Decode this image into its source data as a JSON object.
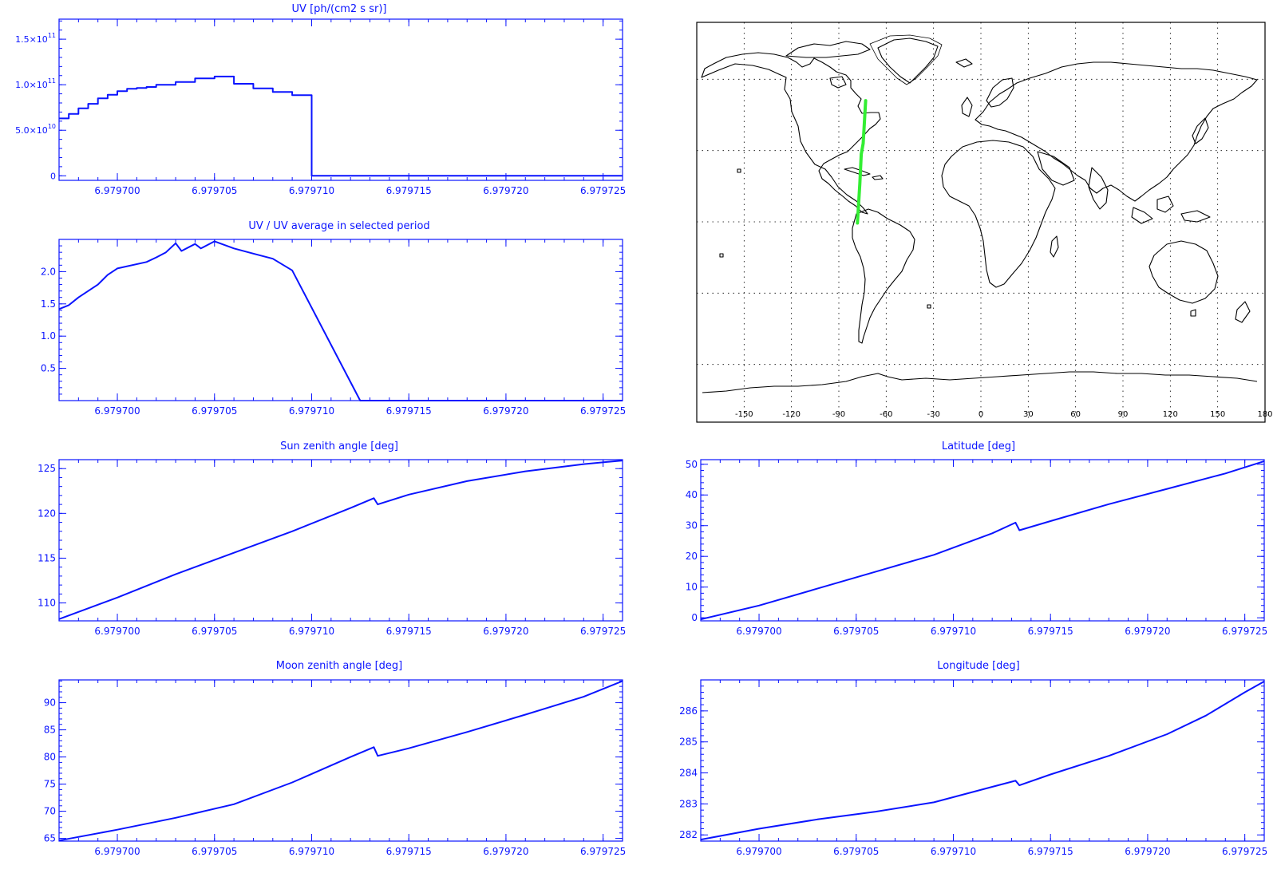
{
  "colors": {
    "axes": "#0a14ff",
    "line": "#0a14ff",
    "track": "#33ee33",
    "coast": "#000000",
    "background": "#ffffff"
  },
  "chart_data": [
    {
      "id": "uv",
      "type": "line",
      "title": "UV [ph/(cm2 s sr)]",
      "xlabel": "",
      "ylabel": "",
      "xlim": [
        6.979697,
        6.979726
      ],
      "ylim": [
        -5000000000.0,
        172000000000.0
      ],
      "xticks": [
        6.9797,
        6.979705,
        6.97971,
        6.979715,
        6.97972,
        6.979725
      ],
      "xtick_labels": [
        "6.979700",
        "6.979705",
        "6.979710",
        "6.979715",
        "6.979720",
        "6.979725"
      ],
      "yticks": [
        0,
        50000000000.0,
        100000000000.0,
        150000000000.0
      ],
      "ytick_labels": [
        {
          "main": "0",
          "exp": ""
        },
        {
          "main": "5.0×10",
          "exp": "10"
        },
        {
          "main": "1.0×10",
          "exp": "11"
        },
        {
          "main": "1.5×10",
          "exp": "11"
        }
      ],
      "series": [
        {
          "x": [
            6.979697,
            6.9796975,
            6.979698,
            6.9796985,
            6.979699,
            6.9796995,
            6.9797,
            6.9797005,
            6.979701,
            6.9797015,
            6.979702,
            6.979703,
            6.979704,
            6.979705,
            6.979706,
            6.979707,
            6.979708,
            6.979709,
            6.9797095,
            6.97971,
            6.97971,
            6.9797105,
            6.979726
          ],
          "y": [
            63000000000.0,
            68000000000.0,
            74000000000.0,
            79000000000.0,
            85000000000.0,
            89000000000.0,
            93000000000.0,
            95500000000.0,
            96500000000.0,
            97500000000.0,
            100000000000.0,
            103000000000.0,
            107000000000.0,
            109000000000.0,
            101000000000.0,
            96000000000.0,
            92000000000.0,
            88500000000.0,
            88500000000.0,
            88500000000.0,
            0,
            0,
            0
          ],
          "step": true
        }
      ]
    },
    {
      "id": "uv-ratio",
      "type": "line",
      "title": "UV / UV average in selected period",
      "xlabel": "",
      "ylabel": "",
      "xlim": [
        6.979697,
        6.979726
      ],
      "ylim": [
        0,
        2.5
      ],
      "xticks": [
        6.9797,
        6.979705,
        6.97971,
        6.979715,
        6.97972,
        6.979725
      ],
      "xtick_labels": [
        "6.979700",
        "6.979705",
        "6.979710",
        "6.979715",
        "6.979720",
        "6.979725"
      ],
      "yticks": [
        0.5,
        1.0,
        1.5,
        2.0
      ],
      "ytick_labels": [
        "0.5",
        "1.0",
        "1.5",
        "2.0"
      ],
      "series": [
        {
          "x": [
            6.979697,
            6.9796975,
            6.979698,
            6.979699,
            6.9796995,
            6.9797,
            6.9797015,
            6.979702,
            6.9797025,
            6.979703,
            6.9797033,
            6.979704,
            6.9797043,
            6.979705,
            6.979706,
            6.979707,
            6.979708,
            6.979709,
            6.9797125,
            6.979726
          ],
          "y": [
            1.42,
            1.48,
            1.6,
            1.8,
            1.95,
            2.05,
            2.15,
            2.22,
            2.3,
            2.44,
            2.32,
            2.43,
            2.36,
            2.47,
            2.36,
            2.28,
            2.2,
            2.02,
            0.0,
            0.0
          ]
        }
      ]
    },
    {
      "id": "sun-zenith",
      "type": "line",
      "title": "Sun zenith angle [deg]",
      "xlabel": "",
      "ylabel": "",
      "xlim": [
        6.979697,
        6.979726
      ],
      "ylim": [
        108,
        126
      ],
      "xticks": [
        6.9797,
        6.979705,
        6.97971,
        6.979715,
        6.97972,
        6.979725
      ],
      "xtick_labels": [
        "6.979700",
        "6.979705",
        "6.979710",
        "6.979715",
        "6.979720",
        "6.979725"
      ],
      "yticks": [
        110,
        115,
        120,
        125
      ],
      "ytick_labels": [
        "110",
        "115",
        "120",
        "125"
      ],
      "series": [
        {
          "x": [
            6.979697,
            6.9797,
            6.979703,
            6.979706,
            6.979709,
            6.979712,
            6.9797132,
            6.9797134,
            6.979715,
            6.979718,
            6.979721,
            6.979724,
            6.979726
          ],
          "y": [
            108.2,
            110.6,
            113.2,
            115.6,
            118.0,
            120.6,
            121.7,
            121.0,
            122.1,
            123.6,
            124.7,
            125.5,
            125.9
          ]
        }
      ]
    },
    {
      "id": "moon-zenith",
      "type": "line",
      "title": "Moon zenith angle [deg]",
      "xlabel": "",
      "ylabel": "",
      "xlim": [
        6.979697,
        6.979726
      ],
      "ylim": [
        64.5,
        94.2
      ],
      "xticks": [
        6.9797,
        6.979705,
        6.97971,
        6.979715,
        6.97972,
        6.979725
      ],
      "xtick_labels": [
        "6.979700",
        "6.979705",
        "6.979710",
        "6.979715",
        "6.979720",
        "6.979725"
      ],
      "yticks": [
        65,
        70,
        75,
        80,
        85,
        90
      ],
      "ytick_labels": [
        "65",
        "70",
        "75",
        "80",
        "85",
        "90"
      ],
      "series": [
        {
          "x": [
            6.979697,
            6.9797,
            6.979703,
            6.979706,
            6.979709,
            6.979712,
            6.9797132,
            6.9797134,
            6.979715,
            6.979718,
            6.979721,
            6.979724,
            6.979726
          ],
          "y": [
            64.6,
            66.6,
            68.8,
            71.3,
            75.3,
            80.0,
            81.8,
            80.2,
            81.6,
            84.6,
            87.8,
            91.1,
            94.0
          ]
        }
      ]
    },
    {
      "id": "latitude",
      "type": "line",
      "title": "Latitude [deg]",
      "xlabel": "",
      "ylabel": "",
      "xlim": [
        6.979697,
        6.979726
      ],
      "ylim": [
        -1,
        51.5
      ],
      "xticks": [
        6.9797,
        6.979705,
        6.97971,
        6.979715,
        6.97972,
        6.979725
      ],
      "xtick_labels": [
        "6.979700",
        "6.979705",
        "6.979710",
        "6.979715",
        "6.979720",
        "6.979725"
      ],
      "yticks": [
        0,
        10,
        20,
        30,
        40,
        50
      ],
      "ytick_labels": [
        "0",
        "10",
        "20",
        "30",
        "40",
        "50"
      ],
      "series": [
        {
          "x": [
            6.979697,
            6.9797,
            6.979703,
            6.979706,
            6.979709,
            6.979712,
            6.9797132,
            6.9797134,
            6.979715,
            6.979718,
            6.979721,
            6.979724,
            6.979726
          ],
          "y": [
            -0.5,
            4.0,
            9.5,
            15.0,
            20.5,
            27.5,
            31.0,
            28.5,
            31.5,
            37.0,
            42.0,
            47.0,
            51.0
          ]
        }
      ]
    },
    {
      "id": "longitude",
      "type": "line",
      "title": "Longitude [deg]",
      "xlabel": "",
      "ylabel": "",
      "xlim": [
        6.979697,
        6.979726
      ],
      "ylim": [
        281.8,
        287.0
      ],
      "xticks": [
        6.9797,
        6.979705,
        6.97971,
        6.979715,
        6.97972,
        6.979725
      ],
      "xtick_labels": [
        "6.979700",
        "6.979705",
        "6.979710",
        "6.979715",
        "6.979720",
        "6.979725"
      ],
      "yticks": [
        282,
        283,
        284,
        285,
        286
      ],
      "ytick_labels": [
        "282",
        "283",
        "284",
        "285",
        "286"
      ],
      "series": [
        {
          "x": [
            6.979697,
            6.9797,
            6.979703,
            6.979706,
            6.979709,
            6.979712,
            6.9797132,
            6.9797134,
            6.979715,
            6.979718,
            6.979721,
            6.979723,
            6.979725,
            6.979726
          ],
          "y": [
            281.85,
            282.2,
            282.5,
            282.75,
            283.05,
            283.55,
            283.75,
            283.6,
            283.95,
            284.55,
            285.25,
            285.85,
            286.6,
            286.95
          ]
        }
      ]
    }
  ],
  "map": {
    "type": "map",
    "lon_ticks": [
      -150,
      -120,
      -90,
      -60,
      -30,
      0,
      30,
      60,
      90,
      120,
      150,
      180
    ],
    "lon_tick_labels": [
      "-150",
      "-120",
      "-90",
      "-60",
      "-30",
      "0",
      "30",
      "60",
      "90",
      "120",
      "150",
      "180"
    ],
    "lat_gridlines": [
      -60,
      -30,
      0,
      30,
      60
    ],
    "track": [
      [
        -78.2,
        -0.5
      ],
      [
        -76.7,
        16
      ],
      [
        -75.8,
        28.5
      ],
      [
        -74.6,
        33
      ],
      [
        -73.0,
        51
      ]
    ]
  }
}
